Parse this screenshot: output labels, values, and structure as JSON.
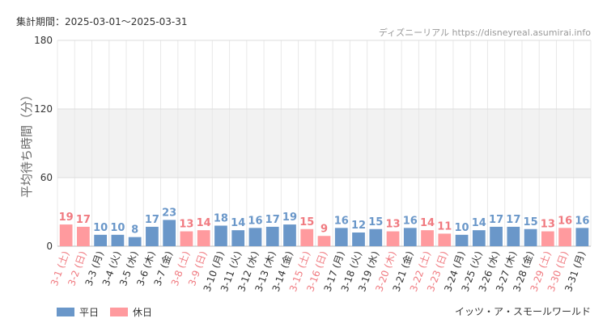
{
  "header": {
    "period": "集計期間：2025-03-01〜2025-03-31",
    "credit": "ディズニーリアル https://disneyreal.asumirai.info"
  },
  "footer": {
    "attraction": "イッツ・ア・スモールワールド"
  },
  "colors": {
    "weekday": "#6a97c9",
    "holiday": "#ff9a9e",
    "holiday_label": "#f07a80",
    "weekday_label": "#333333",
    "band": "#f2f2f2"
  },
  "chart_data": {
    "type": "bar",
    "ylabel": "平均待ち時間（分）",
    "ylim": [
      0,
      180
    ],
    "yticks": [
      0,
      60,
      120,
      180
    ],
    "grid": true,
    "legend_position": "bottom-left",
    "legend": [
      {
        "name": "平日",
        "kind": "weekday"
      },
      {
        "name": "休日",
        "kind": "holiday"
      }
    ],
    "categories": [
      "3-1 (土)",
      "3-2 (日)",
      "3-3 (月)",
      "3-4 (火)",
      "3-5 (水)",
      "3-6 (木)",
      "3-7 (金)",
      "3-8 (土)",
      "3-9 (日)",
      "3-10 (月)",
      "3-11 (火)",
      "3-12 (水)",
      "3-13 (木)",
      "3-14 (金)",
      "3-15 (土)",
      "3-16 (日)",
      "3-17 (月)",
      "3-18 (火)",
      "3-19 (水)",
      "3-20 (木)",
      "3-21 (金)",
      "3-22 (土)",
      "3-23 (日)",
      "3-24 (月)",
      "3-25 (火)",
      "3-26 (水)",
      "3-27 (木)",
      "3-28 (金)",
      "3-29 (土)",
      "3-30 (日)",
      "3-31 (月)"
    ],
    "values": [
      19,
      17,
      10,
      10,
      8,
      17,
      23,
      13,
      14,
      18,
      14,
      16,
      17,
      19,
      15,
      9,
      16,
      12,
      15,
      13,
      16,
      14,
      11,
      10,
      14,
      17,
      17,
      15,
      13,
      16,
      16
    ],
    "holiday": [
      true,
      true,
      false,
      false,
      false,
      false,
      false,
      true,
      true,
      false,
      false,
      false,
      false,
      false,
      true,
      true,
      false,
      false,
      false,
      true,
      false,
      true,
      true,
      false,
      false,
      false,
      false,
      false,
      true,
      true,
      false
    ]
  }
}
